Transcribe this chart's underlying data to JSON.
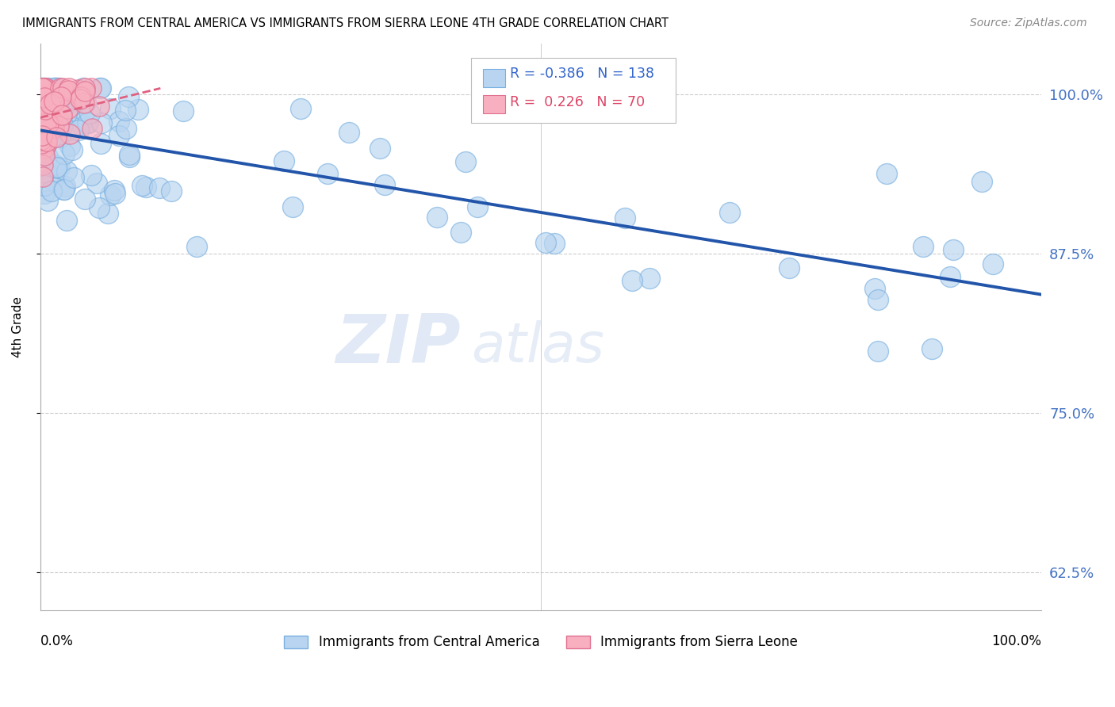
{
  "title": "IMMIGRANTS FROM CENTRAL AMERICA VS IMMIGRANTS FROM SIERRA LEONE 4TH GRADE CORRELATION CHART",
  "source": "Source: ZipAtlas.com",
  "ylabel": "4th Grade",
  "ytick_labels": [
    "62.5%",
    "75.0%",
    "87.5%",
    "100.0%"
  ],
  "ytick_values": [
    0.625,
    0.75,
    0.875,
    1.0
  ],
  "legend_label1": "Immigrants from Central America",
  "legend_label2": "Immigrants from Sierra Leone",
  "R1": -0.386,
  "N1": 138,
  "R2": 0.226,
  "N2": 70,
  "color_blue": "#b8d4f0",
  "color_blue_edge": "#7ab0e0",
  "color_blue_line": "#2255aa",
  "color_pink": "#f8b0c0",
  "color_pink_edge": "#e07090",
  "color_pink_line": "#e06080",
  "watermark_zip": "ZIP",
  "watermark_atlas": "atlas",
  "blue_line_x0": 0.0,
  "blue_line_x1": 1.0,
  "blue_line_y0": 0.972,
  "blue_line_y1": 0.843,
  "pink_line_x0": 0.0,
  "pink_line_x1": 0.12,
  "pink_line_y0": 0.982,
  "pink_line_y1": 1.005,
  "xlim": [
    0.0,
    1.0
  ],
  "ylim": [
    0.595,
    1.04
  ]
}
